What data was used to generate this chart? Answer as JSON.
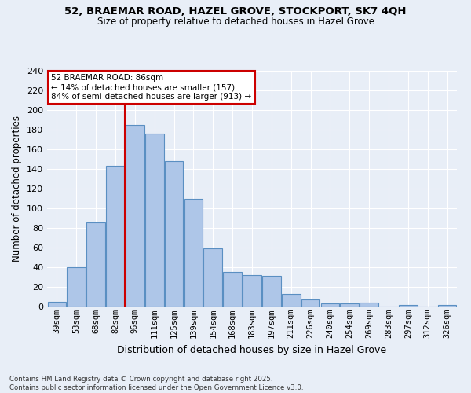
{
  "title_line1": "52, BRAEMAR ROAD, HAZEL GROVE, STOCKPORT, SK7 4QH",
  "title_line2": "Size of property relative to detached houses in Hazel Grove",
  "xlabel": "Distribution of detached houses by size in Hazel Grove",
  "ylabel": "Number of detached properties",
  "categories": [
    "39sqm",
    "53sqm",
    "68sqm",
    "82sqm",
    "96sqm",
    "111sqm",
    "125sqm",
    "139sqm",
    "154sqm",
    "168sqm",
    "183sqm",
    "197sqm",
    "211sqm",
    "226sqm",
    "240sqm",
    "254sqm",
    "269sqm",
    "283sqm",
    "297sqm",
    "312sqm",
    "326sqm"
  ],
  "values": [
    5,
    40,
    86,
    143,
    185,
    176,
    148,
    110,
    59,
    35,
    32,
    31,
    13,
    7,
    3,
    3,
    4,
    0,
    2,
    0,
    2
  ],
  "bar_color": "#aec6e8",
  "bar_edge_color": "#5a8fc2",
  "bg_color": "#e8eef7",
  "grid_color": "#ffffff",
  "vline_x_index": 3,
  "vline_color": "#cc0000",
  "annotation_text": "52 BRAEMAR ROAD: 86sqm\n← 14% of detached houses are smaller (157)\n84% of semi-detached houses are larger (913) →",
  "annotation_box_color": "#cc0000",
  "footnote1": "Contains HM Land Registry data © Crown copyright and database right 2025.",
  "footnote2": "Contains public sector information licensed under the Open Government Licence v3.0.",
  "ylim": [
    0,
    240
  ],
  "yticks": [
    0,
    20,
    40,
    60,
    80,
    100,
    120,
    140,
    160,
    180,
    200,
    220,
    240
  ]
}
